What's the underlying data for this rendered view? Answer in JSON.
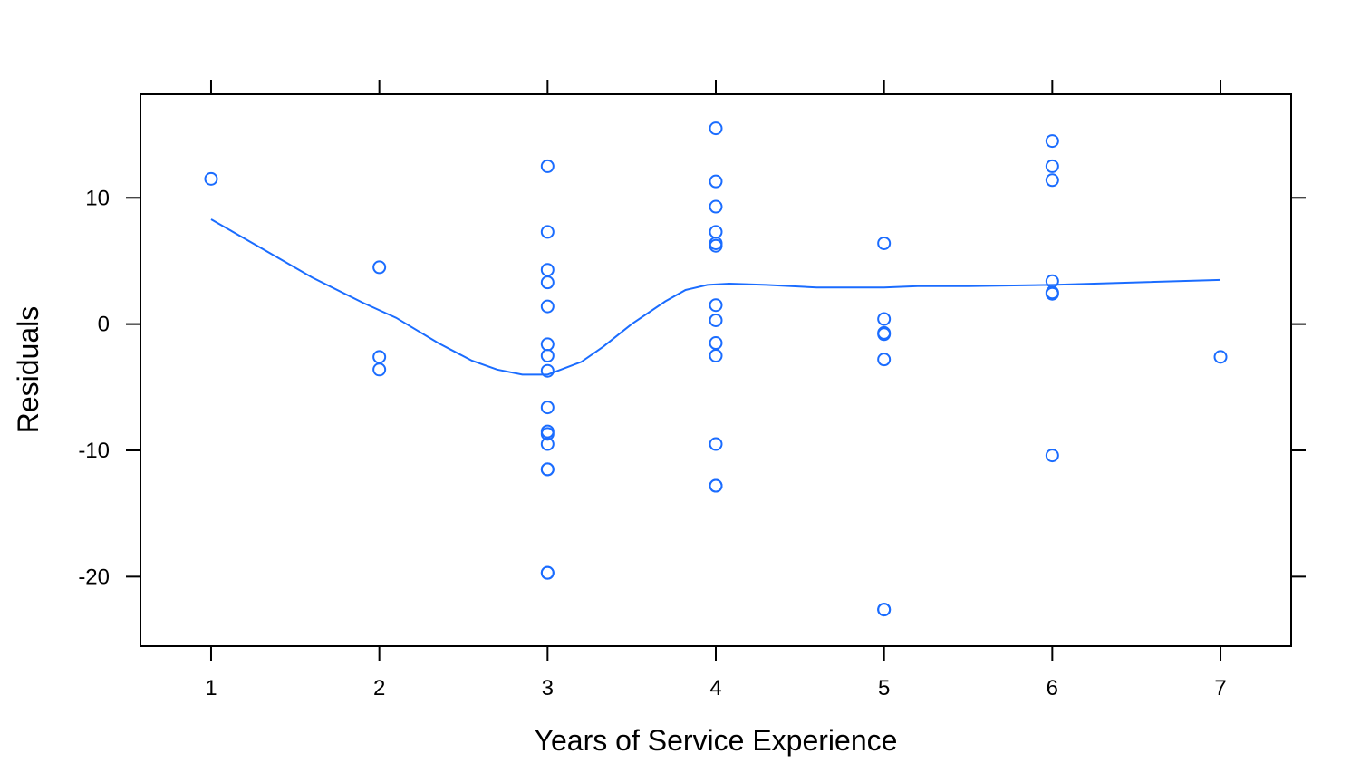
{
  "chart_data": {
    "type": "scatter",
    "title": "",
    "xlabel": "Years of Service Experience",
    "ylabel": "Residuals",
    "xlim": [
      0.58,
      7.42
    ],
    "ylim": [
      -25.5,
      18.2
    ],
    "xticks": [
      1,
      2,
      3,
      4,
      5,
      6,
      7
    ],
    "yticks": [
      -20,
      -10,
      0,
      10
    ],
    "ticks_on_all_sides": true,
    "grid": false,
    "legend": "none",
    "point_color": "#1a6cff",
    "line_color": "#1a6cff",
    "points": {
      "x": [
        1,
        2,
        2,
        2,
        3,
        3,
        3,
        3,
        3,
        3,
        3,
        3,
        3,
        3,
        3,
        3,
        3,
        3,
        3,
        3,
        4,
        4,
        4,
        4,
        4,
        4,
        4,
        4,
        4,
        4,
        4,
        4,
        4,
        5,
        5,
        5,
        5,
        5,
        5,
        5,
        6,
        6,
        6,
        6,
        6,
        6,
        6,
        7
      ],
      "y": [
        11.5,
        4.5,
        -2.6,
        -3.6,
        12.5,
        7.3,
        4.3,
        3.3,
        1.4,
        -1.6,
        -2.5,
        -3.7,
        -6.6,
        -8.5,
        -8.7,
        -9.5,
        -11.5,
        -11.5,
        -19.7,
        -19.7,
        15.5,
        11.3,
        9.3,
        7.3,
        6.4,
        6.2,
        1.5,
        0.3,
        -1.5,
        -2.5,
        -9.5,
        -12.8,
        -12.8,
        6.4,
        0.4,
        -0.7,
        -0.8,
        -2.8,
        -22.6,
        -22.6,
        14.5,
        12.5,
        11.4,
        3.4,
        2.5,
        2.4,
        -10.4,
        -2.6
      ]
    },
    "smooth_line": {
      "x": [
        1,
        1.3,
        1.6,
        1.9,
        2.1,
        2.35,
        2.55,
        2.7,
        2.85,
        3.0,
        3.08,
        3.2,
        3.33,
        3.5,
        3.7,
        3.82,
        3.95,
        4.08,
        4.3,
        4.6,
        4.8,
        5.0,
        5.2,
        5.5,
        6.0,
        6.5,
        7.0
      ],
      "y": [
        8.3,
        6.0,
        3.7,
        1.7,
        0.5,
        -1.5,
        -2.9,
        -3.6,
        -4.0,
        -4.0,
        -3.6,
        -3.0,
        -1.8,
        0.0,
        1.8,
        2.7,
        3.1,
        3.2,
        3.1,
        2.9,
        2.9,
        2.9,
        3.0,
        3.0,
        3.1,
        3.3,
        3.5
      ]
    }
  }
}
